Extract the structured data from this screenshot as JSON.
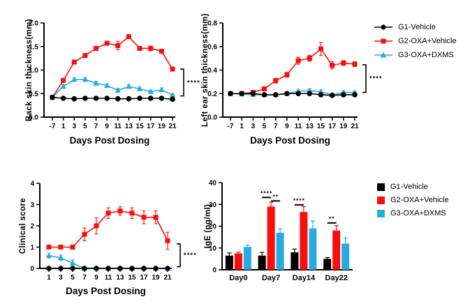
{
  "legend_top": {
    "items": [
      {
        "label": "G1-Vehicle",
        "color": "#000000",
        "marker": "circle"
      },
      {
        "label": "G2-OXA+Vehicle",
        "color": "#FA0D0D",
        "marker": "square"
      },
      {
        "label": "G3-OXA+DXMS",
        "color": "#29ABE2",
        "marker": "triangle"
      }
    ]
  },
  "legend_bottom": {
    "items": [
      {
        "label": "G1-Vehicle",
        "color": "#000000"
      },
      {
        "label": "G2-OXA+Vehicle",
        "color": "#FA0D0D"
      },
      {
        "label": "G3-OXA+DXMS",
        "color": "#29ABE2"
      }
    ]
  },
  "chart_data": [
    {
      "id": "back-skin",
      "type": "line",
      "title": "",
      "ylabel": "Back skin thickness(mm)",
      "xlabel": "Days Post Dosing",
      "x_labels": [
        "-7",
        "1",
        "3",
        "5",
        "7",
        "9",
        "11",
        "13",
        "15",
        "17",
        "19",
        "21"
      ],
      "ylim": [
        0,
        2
      ],
      "yticks": [
        {
          "v": 0,
          "t": "0.0"
        },
        {
          "v": 0.5,
          "t": "0.5"
        },
        {
          "v": 1,
          "t": "1.0"
        },
        {
          "v": 1.5,
          "t": "1.5"
        },
        {
          "v": 2,
          "t": "2.0"
        }
      ],
      "series": [
        {
          "name": "G1-Vehicle",
          "color": "#000000",
          "marker": "circle",
          "values": [
            0.42,
            0.4,
            0.39,
            0.4,
            0.4,
            0.4,
            0.39,
            0.39,
            0.4,
            0.4,
            0.4,
            0.38
          ],
          "errors": [
            0.02,
            0,
            0,
            0,
            0,
            0,
            0,
            0,
            0,
            0,
            0,
            0
          ]
        },
        {
          "name": "G2-OXA+Vehicle",
          "color": "#FA0D0D",
          "marker": "square",
          "values": [
            0.42,
            0.78,
            1.17,
            1.31,
            1.46,
            1.57,
            1.52,
            1.71,
            1.46,
            1.46,
            1.4,
            1.02
          ],
          "errors": [
            0.02,
            0.03,
            0.03,
            0.03,
            0.03,
            0.04,
            0.09,
            0.04,
            0.04,
            0.05,
            0.04,
            0.04
          ]
        },
        {
          "name": "G3-OXA+DXMS",
          "color": "#29ABE2",
          "marker": "triangle",
          "values": [
            0.42,
            0.65,
            0.8,
            0.8,
            0.72,
            0.67,
            0.57,
            0.65,
            0.6,
            0.54,
            0.58,
            0.47
          ],
          "errors": [
            0.02,
            0.04,
            0.04,
            0.04,
            0.04,
            0.04,
            0.04,
            0.04,
            0.04,
            0.03,
            0.04,
            0.02
          ]
        }
      ],
      "significance": {
        "label": "****",
        "top": 1.02,
        "bottom": 0.45
      }
    },
    {
      "id": "left-ear",
      "type": "line",
      "title": "",
      "ylabel": "Left ear skin thickness(mm)",
      "xlabel": "Days Post Dosing",
      "x_labels": [
        "-7",
        "1",
        "3",
        "5",
        "7",
        "9",
        "11",
        "13",
        "15",
        "17",
        "19",
        "21"
      ],
      "ylim": [
        0,
        0.8
      ],
      "yticks": [
        {
          "v": 0,
          "t": "0.0"
        },
        {
          "v": 0.2,
          "t": "0.2"
        },
        {
          "v": 0.4,
          "t": "0.4"
        },
        {
          "v": 0.6,
          "t": "0.6"
        },
        {
          "v": 0.8,
          "t": "0.8"
        }
      ],
      "series": [
        {
          "name": "G1-Vehicle",
          "color": "#000000",
          "marker": "circle",
          "values": [
            0.2,
            0.2,
            0.2,
            0.19,
            0.19,
            0.2,
            0.2,
            0.2,
            0.19,
            0.185,
            0.19,
            0.19
          ],
          "errors": [
            0.008,
            0.008,
            0.008,
            0.008,
            0.008,
            0.008,
            0.008,
            0.008,
            0.008,
            0.008,
            0.008,
            0.008
          ]
        },
        {
          "name": "G2-OXA+Vehicle",
          "color": "#FA0D0D",
          "marker": "square",
          "values": [
            0.2,
            0.2,
            0.21,
            0.24,
            0.31,
            0.36,
            0.48,
            0.5,
            0.58,
            0.44,
            0.46,
            0.45
          ],
          "errors": [
            0.01,
            0.01,
            0.01,
            0.015,
            0.02,
            0.02,
            0.03,
            0.025,
            0.055,
            0.03,
            0.02,
            0.02
          ]
        },
        {
          "name": "G3-OXA+DXMS",
          "color": "#29ABE2",
          "marker": "triangle",
          "values": [
            0.2,
            0.195,
            0.19,
            0.19,
            0.19,
            0.2,
            0.22,
            0.225,
            0.215,
            0.19,
            0.21,
            0.21
          ],
          "errors": [
            0.01,
            0.01,
            0.015,
            0.01,
            0.01,
            0.01,
            0.015,
            0.015,
            0.015,
            0.01,
            0.015,
            0.01
          ]
        }
      ],
      "significance": {
        "label": "****",
        "top": 0.445,
        "bottom": 0.21
      }
    },
    {
      "id": "clinical-score",
      "type": "line",
      "title": "",
      "ylabel": "Clinical score",
      "xlabel": "Days Post Dosing",
      "x_labels": [
        "1",
        "3",
        "5",
        "7",
        "9",
        "11",
        "13",
        "15",
        "17",
        "19",
        "21"
      ],
      "ylim": [
        0,
        4
      ],
      "yticks": [
        {
          "v": 0,
          "t": "0"
        },
        {
          "v": 1,
          "t": "1"
        },
        {
          "v": 2,
          "t": "2"
        },
        {
          "v": 3,
          "t": "3"
        },
        {
          "v": 4,
          "t": "4"
        }
      ],
      "series": [
        {
          "name": "G1-Vehicle",
          "color": "#000000",
          "marker": "circle",
          "values": [
            0,
            0,
            0,
            0,
            0,
            0,
            0,
            0,
            0,
            0,
            0
          ],
          "errors": [
            0,
            0,
            0,
            0,
            0,
            0,
            0,
            0,
            0,
            0,
            0
          ]
        },
        {
          "name": "G2-OXA+Vehicle",
          "color": "#FA0D0D",
          "marker": "square",
          "values": [
            1.0,
            1.0,
            1.0,
            1.6,
            2.0,
            2.6,
            2.7,
            2.6,
            2.4,
            2.4,
            1.3
          ],
          "errors": [
            0,
            0,
            0,
            0.3,
            0.38,
            0.25,
            0.2,
            0.25,
            0.3,
            0.3,
            0.4
          ]
        },
        {
          "name": "G3-OXA+DXMS",
          "color": "#29ABE2",
          "marker": "triangle",
          "values": [
            0.6,
            0.5,
            0.25,
            0,
            0,
            0,
            0,
            0,
            0,
            0,
            0
          ],
          "errors": [
            0.12,
            0.13,
            0.15,
            0,
            0,
            0,
            0,
            0,
            0,
            0,
            0
          ]
        }
      ],
      "significance": {
        "label": "****",
        "top": 1.15,
        "bottom": 0.08
      }
    },
    {
      "id": "ige",
      "type": "bar",
      "title": "",
      "ylabel": "IgE (ng/ml)",
      "xlabel": "",
      "categories": [
        "Day0",
        "Day7",
        "Day14",
        "Day22"
      ],
      "ylim": [
        0,
        40
      ],
      "yticks": [
        {
          "v": 0,
          "t": "0"
        },
        {
          "v": 10,
          "t": "10"
        },
        {
          "v": 20,
          "t": "20"
        },
        {
          "v": 30,
          "t": "30"
        },
        {
          "v": 40,
          "t": "40"
        }
      ],
      "series": [
        {
          "name": "G1-Vehicle",
          "color": "#000000",
          "values": [
            6.5,
            6.5,
            8,
            5
          ],
          "errors": [
            1.2,
            1.5,
            1.5,
            0.6
          ]
        },
        {
          "name": "G2-OXA+Vehicle",
          "color": "#FA0D0D",
          "values": [
            7.5,
            29,
            26.5,
            18
          ],
          "errors": [
            0.5,
            2,
            2.5,
            2.3
          ]
        },
        {
          "name": "G3-OXA+DXMS",
          "color": "#29ABE2",
          "values": [
            10.5,
            17,
            19,
            12
          ],
          "errors": [
            0.8,
            1.8,
            3.3,
            2.7
          ]
        }
      ],
      "significance": [
        {
          "category_index": 1,
          "from": 0,
          "to": 1,
          "label": "****",
          "y": 33.2
        },
        {
          "category_index": 1,
          "from": 1,
          "to": 2,
          "label": "**",
          "y": 31.6
        },
        {
          "category_index": 2,
          "from": 0,
          "to": 1,
          "label": "****",
          "y": 29.8
        },
        {
          "category_index": 3,
          "from": 0,
          "to": 1,
          "label": "**",
          "y": 21.5
        }
      ]
    }
  ]
}
